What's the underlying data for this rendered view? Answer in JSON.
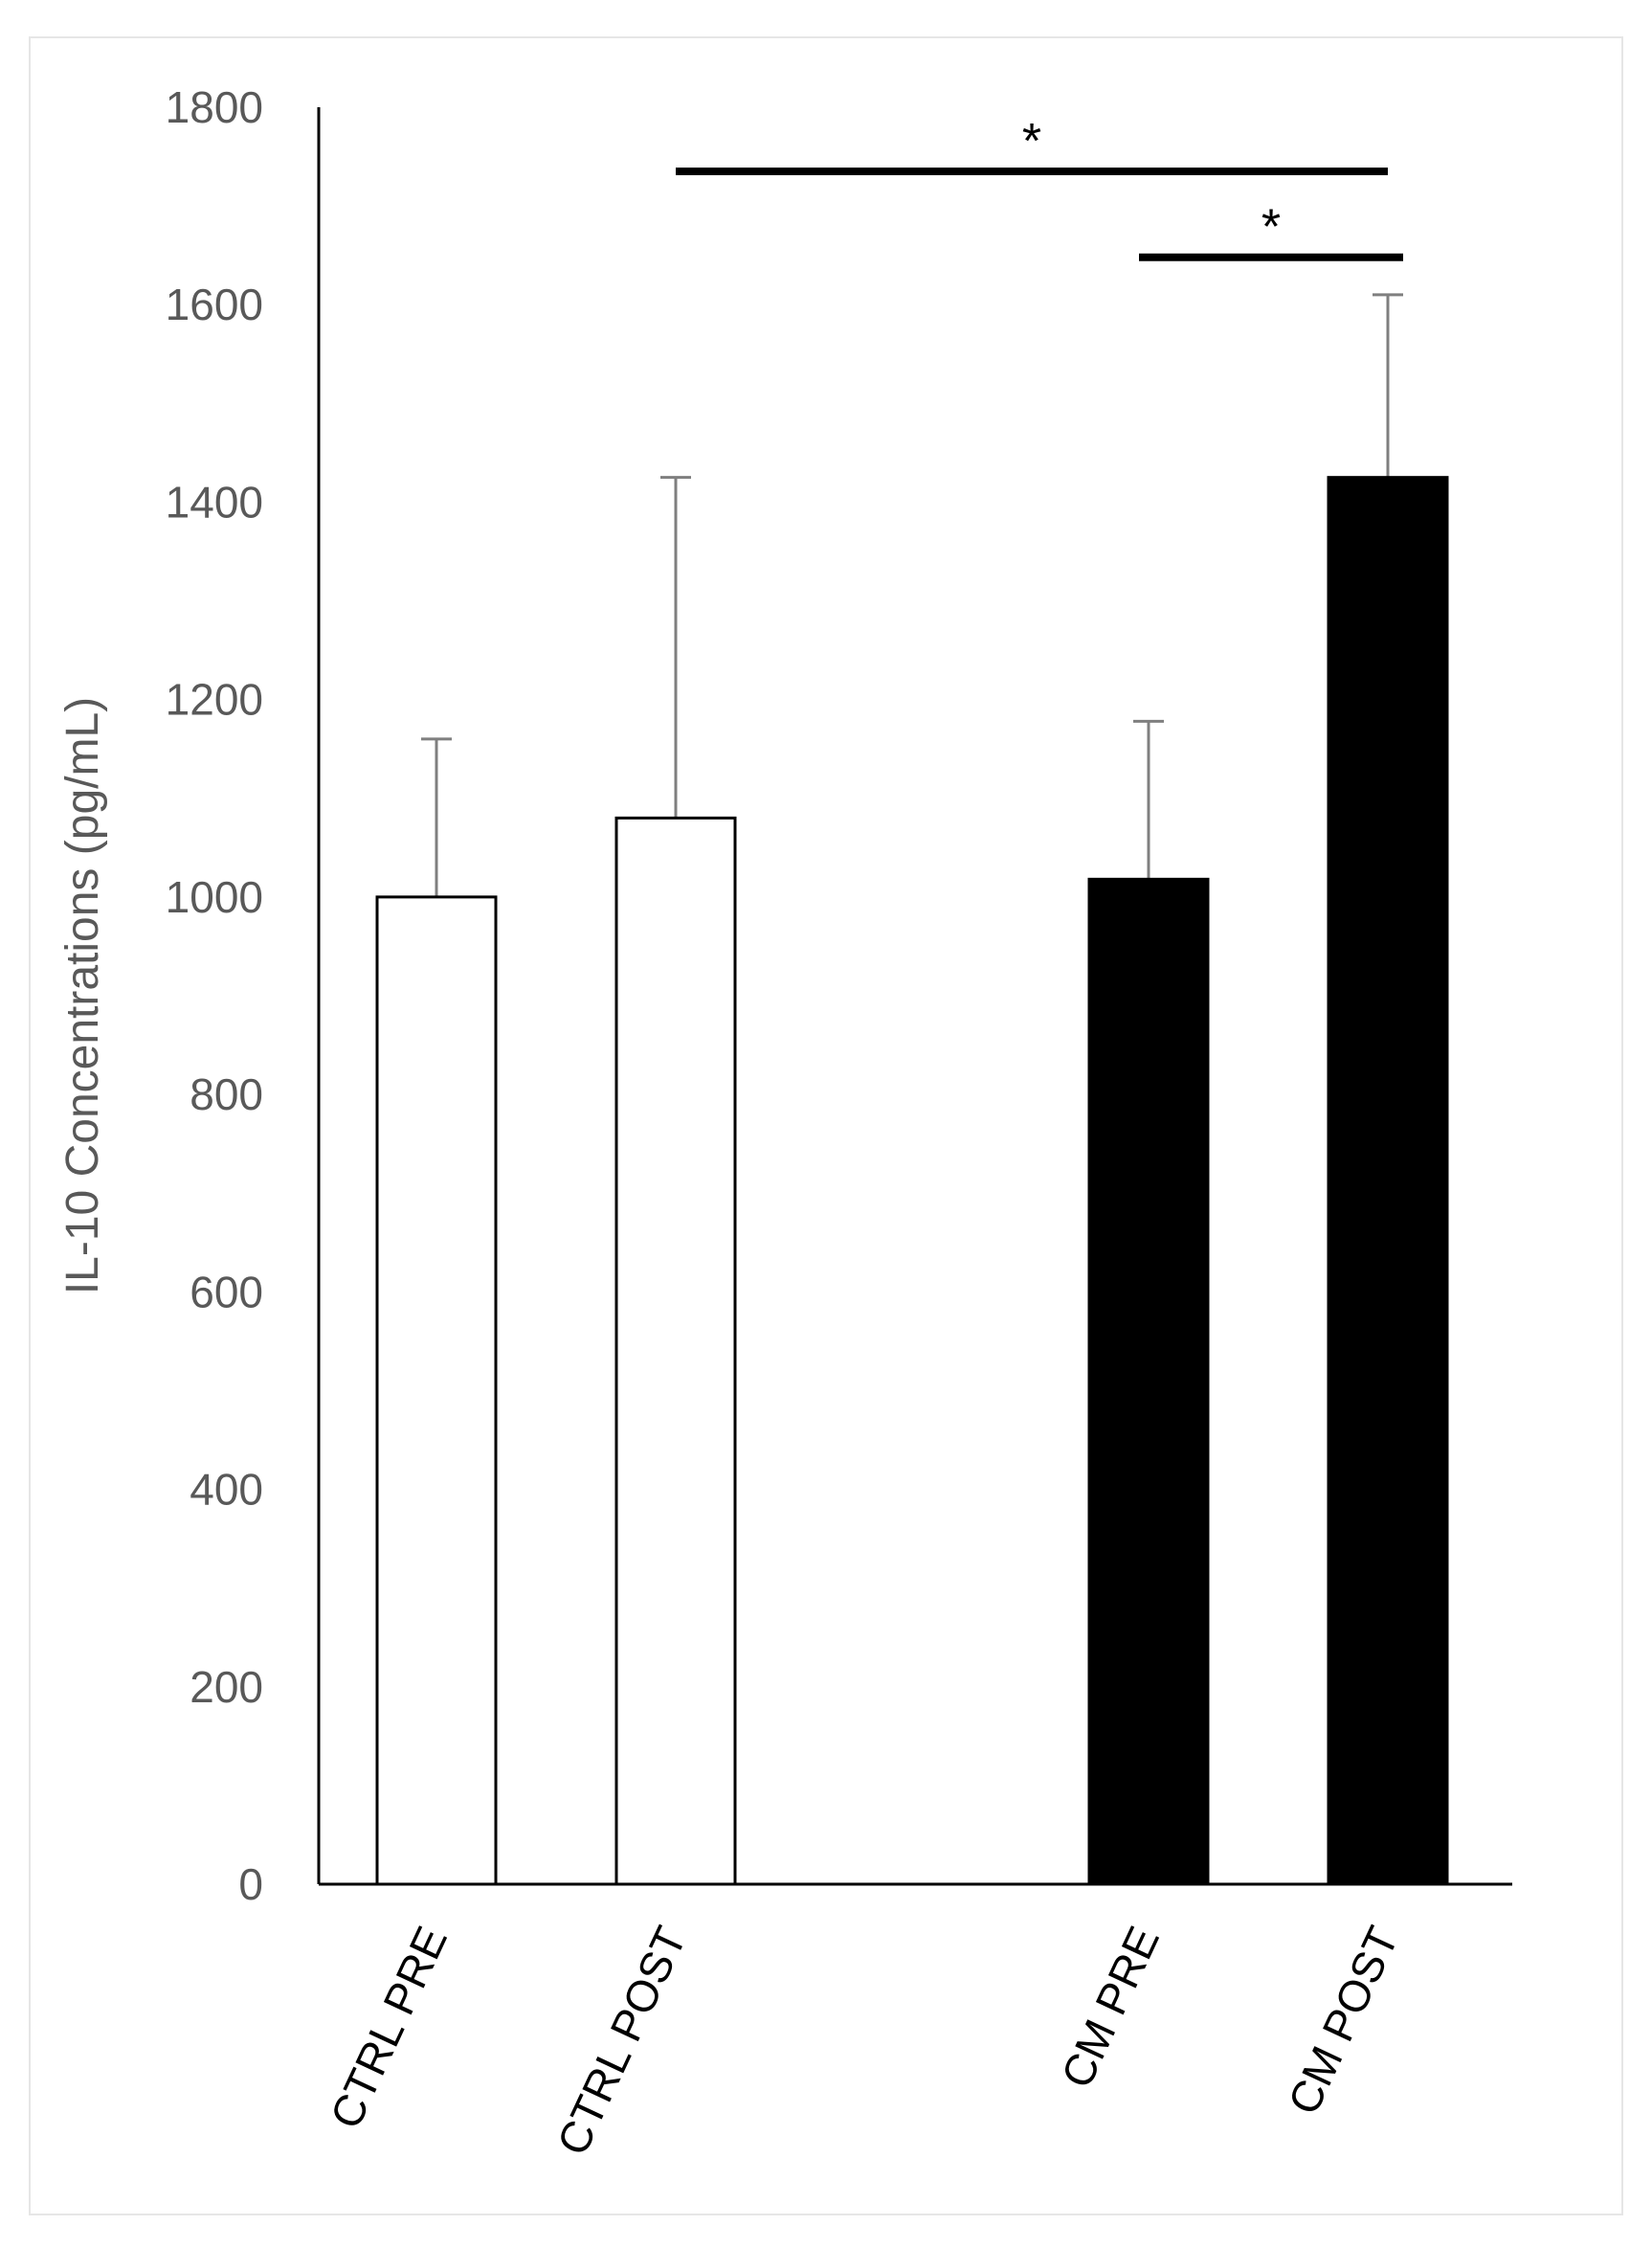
{
  "chart_data": {
    "type": "bar",
    "title": "",
    "xlabel": "",
    "ylabel": "IL-10 Concentrations (pg/mL)",
    "ylim": [
      0,
      1800
    ],
    "yticks": [
      0,
      200,
      400,
      600,
      800,
      1000,
      1200,
      1400,
      1600,
      1800
    ],
    "grid": false,
    "legend": "none",
    "categories": [
      "CTRL PRE",
      "CTRL POST",
      "CM PRE",
      "CM POST"
    ],
    "values": [
      1000,
      1080,
      1018,
      1425
    ],
    "error_upper": [
      160,
      345,
      160,
      185
    ],
    "bar_fill": [
      "#ffffff",
      "#ffffff",
      "#000000",
      "#000000"
    ],
    "significance": [
      {
        "from": "CTRL POST",
        "to": "CM POST",
        "label": "*"
      },
      {
        "from": "CM PRE",
        "to": "CM POST",
        "label": "*"
      }
    ]
  }
}
